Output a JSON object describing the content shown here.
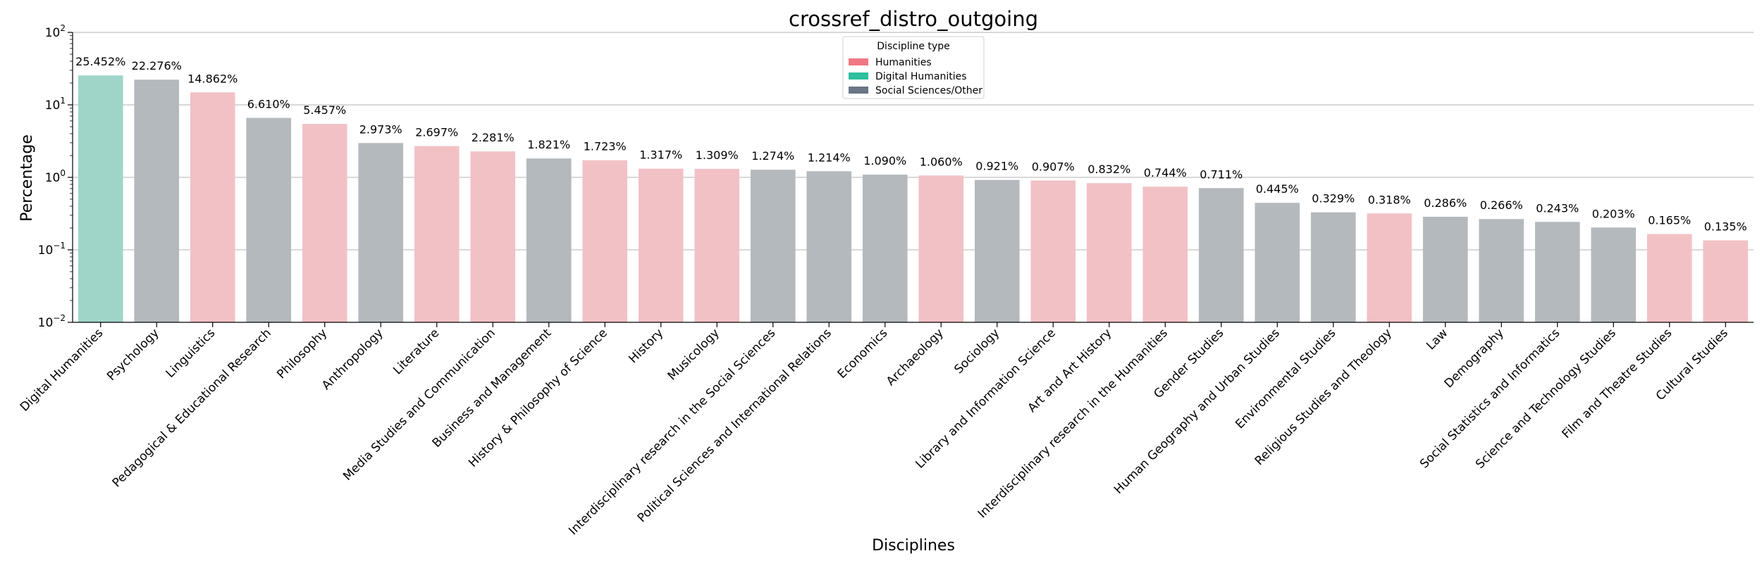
{
  "chart_data": {
    "type": "bar",
    "title": "crossref_distro_outgoing",
    "xlabel": "Disciplines",
    "ylabel": "Percentage",
    "yscale": "log",
    "ylim": [
      0.01,
      100
    ],
    "yticks": [
      {
        "value": 0.01,
        "base": "10",
        "exp": "−2"
      },
      {
        "value": 0.1,
        "base": "10",
        "exp": "−1"
      },
      {
        "value": 1,
        "base": "10",
        "exp": "0"
      },
      {
        "value": 10,
        "base": "10",
        "exp": "1"
      },
      {
        "value": 100,
        "base": "10",
        "exp": "2"
      }
    ],
    "grid": "horizontal",
    "legend": {
      "title": "Discipline type",
      "placement": "top-center",
      "entries": [
        {
          "label": "Humanities",
          "color": "#f07783"
        },
        {
          "label": "Digital Humanities",
          "color": "#2fbf9f"
        },
        {
          "label": "Social Sciences/Other",
          "color": "#6b7686"
        }
      ]
    },
    "bar_colors": {
      "Humanities": "#f2c1c6",
      "Digital Humanities": "#9fd5c8",
      "Social Sciences/Other": "#b4b9bd"
    },
    "bars": [
      {
        "category": "Digital Humanities",
        "value": 25.452,
        "label": "25.452%",
        "type": "Digital Humanities"
      },
      {
        "category": "Psychology",
        "value": 22.276,
        "label": "22.276%",
        "type": "Social Sciences/Other"
      },
      {
        "category": "Linguistics",
        "value": 14.862,
        "label": "14.862%",
        "type": "Humanities"
      },
      {
        "category": "Pedagogical & Educational Research",
        "value": 6.61,
        "label": "6.610%",
        "type": "Social Sciences/Other"
      },
      {
        "category": "Philosophy",
        "value": 5.457,
        "label": "5.457%",
        "type": "Humanities"
      },
      {
        "category": "Anthropology",
        "value": 2.973,
        "label": "2.973%",
        "type": "Social Sciences/Other"
      },
      {
        "category": "Literature",
        "value": 2.697,
        "label": "2.697%",
        "type": "Humanities"
      },
      {
        "category": "Media Studies and Communication",
        "value": 2.281,
        "label": "2.281%",
        "type": "Humanities"
      },
      {
        "category": "Business and Management",
        "value": 1.821,
        "label": "1.821%",
        "type": "Social Sciences/Other"
      },
      {
        "category": "History & Philosophy of Science",
        "value": 1.723,
        "label": "1.723%",
        "type": "Humanities"
      },
      {
        "category": "History",
        "value": 1.317,
        "label": "1.317%",
        "type": "Humanities"
      },
      {
        "category": "Musicology",
        "value": 1.309,
        "label": "1.309%",
        "type": "Humanities"
      },
      {
        "category": "Interdisciplinary research in the Social Sciences",
        "value": 1.274,
        "label": "1.274%",
        "type": "Social Sciences/Other"
      },
      {
        "category": "Political Sciences and International Relations",
        "value": 1.214,
        "label": "1.214%",
        "type": "Social Sciences/Other"
      },
      {
        "category": "Economics",
        "value": 1.09,
        "label": "1.090%",
        "type": "Social Sciences/Other"
      },
      {
        "category": "Archaeology",
        "value": 1.06,
        "label": "1.060%",
        "type": "Humanities"
      },
      {
        "category": "Sociology",
        "value": 0.921,
        "label": "0.921%",
        "type": "Social Sciences/Other"
      },
      {
        "category": "Library and Information Science",
        "value": 0.907,
        "label": "0.907%",
        "type": "Humanities"
      },
      {
        "category": "Art and Art History",
        "value": 0.832,
        "label": "0.832%",
        "type": "Humanities"
      },
      {
        "category": "Interdisciplinary research in the Humanities",
        "value": 0.744,
        "label": "0.744%",
        "type": "Humanities"
      },
      {
        "category": "Gender Studies",
        "value": 0.711,
        "label": "0.711%",
        "type": "Social Sciences/Other"
      },
      {
        "category": "Human Geography and Urban Studies",
        "value": 0.445,
        "label": "0.445%",
        "type": "Social Sciences/Other"
      },
      {
        "category": "Environmental Studies",
        "value": 0.329,
        "label": "0.329%",
        "type": "Social Sciences/Other"
      },
      {
        "category": "Religious Studies and Theology",
        "value": 0.318,
        "label": "0.318%",
        "type": "Humanities"
      },
      {
        "category": "Law",
        "value": 0.286,
        "label": "0.286%",
        "type": "Social Sciences/Other"
      },
      {
        "category": "Demography",
        "value": 0.266,
        "label": "0.266%",
        "type": "Social Sciences/Other"
      },
      {
        "category": "Social Statistics and Informatics",
        "value": 0.243,
        "label": "0.243%",
        "type": "Social Sciences/Other"
      },
      {
        "category": "Science and Technology Studies",
        "value": 0.203,
        "label": "0.203%",
        "type": "Social Sciences/Other"
      },
      {
        "category": "Film and Theatre Studies",
        "value": 0.165,
        "label": "0.165%",
        "type": "Humanities"
      },
      {
        "category": "Cultural Studies",
        "value": 0.135,
        "label": "0.135%",
        "type": "Humanities"
      }
    ]
  }
}
